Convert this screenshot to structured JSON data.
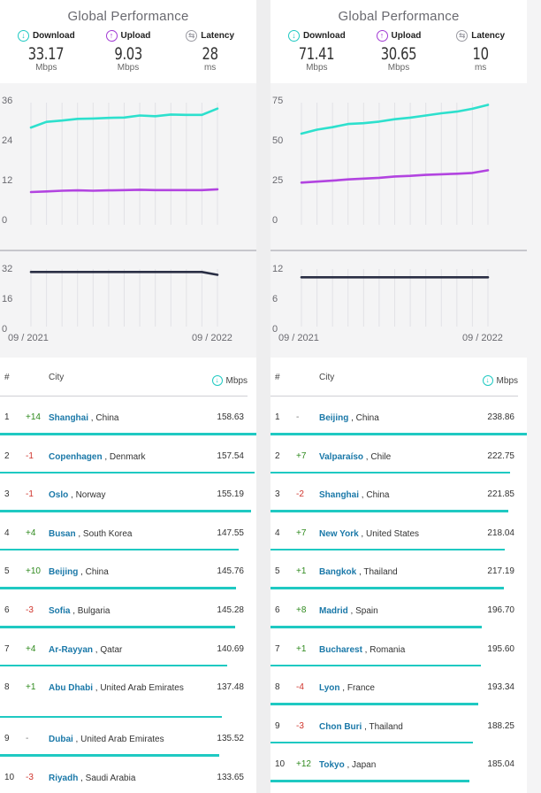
{
  "panels": [
    {
      "title": "Global Performance",
      "metrics": {
        "download": {
          "label": "Download",
          "value": "33.17",
          "unit": "Mbps",
          "icon": "download-arrow-icon"
        },
        "upload": {
          "label": "Upload",
          "value": "9.03",
          "unit": "Mbps",
          "icon": "upload-arrow-icon"
        },
        "latency": {
          "label": "Latency",
          "value": "28",
          "unit": "ms",
          "icon": "latency-arrows-icon"
        }
      },
      "chart_data": {
        "type": "line",
        "speed": {
          "yticks": [
            "36",
            "24",
            "12",
            "0"
          ],
          "ylim": [
            0,
            36
          ],
          "series": [
            {
              "color": "#2de0cd",
              "values": [
                27.5,
                29.2,
                29.6,
                30.1,
                30.2,
                30.4,
                30.5,
                31.1,
                30.9,
                31.4,
                31.3,
                31.3,
                33.17
              ]
            },
            {
              "color": "#b244e0",
              "values": [
                8.2,
                8.4,
                8.6,
                8.7,
                8.6,
                8.7,
                8.8,
                8.9,
                8.8,
                8.8,
                8.8,
                8.8,
                9.03
              ]
            }
          ]
        },
        "latency": {
          "yticks": [
            "32",
            "16",
            "0"
          ],
          "ylim": [
            0,
            32
          ],
          "series": [
            {
              "color": "#2a2f45",
              "values": [
                29.5,
                29.5,
                29.5,
                29.5,
                29.5,
                29.5,
                29.5,
                29.5,
                29.5,
                29.5,
                29.5,
                29.5,
                28
              ]
            }
          ]
        },
        "xstart": "09 / 2021",
        "xend": "09 / 2022"
      },
      "table": {
        "col_num": "#",
        "col_city": "City",
        "col_speed": "Mbps",
        "max_speed": 158.63,
        "rows": [
          {
            "rank": "1",
            "change": "+14",
            "dir": "up",
            "city": "Shanghai",
            "country": "China",
            "speed": "158.63",
            "value": 158.63
          },
          {
            "rank": "2",
            "change": "-1",
            "dir": "down",
            "city": "Copenhagen",
            "country": "Denmark",
            "speed": "157.54",
            "value": 157.54
          },
          {
            "rank": "3",
            "change": "-1",
            "dir": "down",
            "city": "Oslo",
            "country": "Norway",
            "speed": "155.19",
            "value": 155.19
          },
          {
            "rank": "4",
            "change": "+4",
            "dir": "up",
            "city": "Busan",
            "country": "South Korea",
            "speed": "147.55",
            "value": 147.55
          },
          {
            "rank": "5",
            "change": "+10",
            "dir": "up",
            "city": "Beijing",
            "country": "China",
            "speed": "145.76",
            "value": 145.76
          },
          {
            "rank": "6",
            "change": "-3",
            "dir": "down",
            "city": "Sofia",
            "country": "Bulgaria",
            "speed": "145.28",
            "value": 145.28
          },
          {
            "rank": "7",
            "change": "+4",
            "dir": "up",
            "city": "Ar-Rayyan",
            "country": "Qatar",
            "speed": "140.69",
            "value": 140.69
          },
          {
            "rank": "8",
            "change": "+1",
            "dir": "up",
            "city": "Abu Dhabi",
            "country": "United Arab Emirates",
            "speed": "137.48",
            "value": 137.48
          },
          {
            "rank": "9",
            "change": "-",
            "dir": "same",
            "city": "Dubai",
            "country": "United Arab Emirates",
            "speed": "135.52",
            "value": 135.52
          },
          {
            "rank": "10",
            "change": "-3",
            "dir": "down",
            "city": "Riyadh",
            "country": "Saudi Arabia",
            "speed": "133.65",
            "value": 133.65
          }
        ]
      }
    },
    {
      "title": "Global Performance",
      "metrics": {
        "download": {
          "label": "Download",
          "value": "71.41",
          "unit": "Mbps",
          "icon": "download-arrow-icon"
        },
        "upload": {
          "label": "Upload",
          "value": "30.65",
          "unit": "Mbps",
          "icon": "upload-arrow-icon"
        },
        "latency": {
          "label": "Latency",
          "value": "10",
          "unit": "ms",
          "icon": "latency-arrows-icon"
        }
      },
      "chart_data": {
        "type": "line",
        "speed": {
          "yticks": [
            "75",
            "50",
            "25",
            "0"
          ],
          "ylim": [
            0,
            75
          ],
          "series": [
            {
              "color": "#2de0cd",
              "values": [
                53.5,
                56,
                57.5,
                59.5,
                60,
                61,
                62.5,
                63.5,
                64.8,
                66.2,
                67.2,
                69,
                71.41
              ]
            },
            {
              "color": "#b244e0",
              "values": [
                23,
                23.6,
                24.2,
                25,
                25.5,
                26,
                26.8,
                27.2,
                27.8,
                28.2,
                28.5,
                29,
                30.65
              ]
            }
          ]
        },
        "latency": {
          "yticks": [
            "12",
            "6",
            "0"
          ],
          "ylim": [
            0,
            12
          ],
          "series": [
            {
              "color": "#2a2f45",
              "values": [
                10,
                10,
                10,
                10,
                10,
                10,
                10,
                10,
                10,
                10,
                10,
                10,
                10
              ]
            }
          ]
        },
        "xstart": "09 / 2021",
        "xend": "09 / 2022"
      },
      "table": {
        "col_num": "#",
        "col_city": "City",
        "col_speed": "Mbps",
        "max_speed": 238.86,
        "rows": [
          {
            "rank": "1",
            "change": "-",
            "dir": "same",
            "city": "Beijing",
            "country": "China",
            "speed": "238.86",
            "value": 238.86
          },
          {
            "rank": "2",
            "change": "+7",
            "dir": "up",
            "city": "Valparaíso",
            "country": "Chile",
            "speed": "222.75",
            "value": 222.75
          },
          {
            "rank": "3",
            "change": "-2",
            "dir": "down",
            "city": "Shanghai",
            "country": "China",
            "speed": "221.85",
            "value": 221.85
          },
          {
            "rank": "4",
            "change": "+7",
            "dir": "up",
            "city": "New York",
            "country": "United States",
            "speed": "218.04",
            "value": 218.04
          },
          {
            "rank": "5",
            "change": "+1",
            "dir": "up",
            "city": "Bangkok",
            "country": "Thailand",
            "speed": "217.19",
            "value": 217.19
          },
          {
            "rank": "6",
            "change": "+8",
            "dir": "up",
            "city": "Madrid",
            "country": "Spain",
            "speed": "196.70",
            "value": 196.7
          },
          {
            "rank": "7",
            "change": "+1",
            "dir": "up",
            "city": "Bucharest",
            "country": "Romania",
            "speed": "195.60",
            "value": 195.6
          },
          {
            "rank": "8",
            "change": "-4",
            "dir": "down",
            "city": "Lyon",
            "country": "France",
            "speed": "193.34",
            "value": 193.34
          },
          {
            "rank": "9",
            "change": "-3",
            "dir": "down",
            "city": "Chon Buri",
            "country": "Thailand",
            "speed": "188.25",
            "value": 188.25
          },
          {
            "rank": "10",
            "change": "+12",
            "dir": "up",
            "city": "Tokyo",
            "country": "Japan",
            "speed": "185.04",
            "value": 185.04
          }
        ]
      }
    }
  ]
}
